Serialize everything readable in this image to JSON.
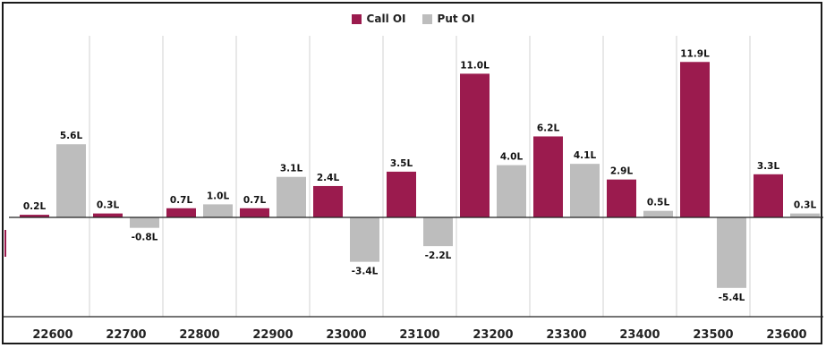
{
  "chart_data": {
    "type": "bar",
    "categories": [
      "22600",
      "22700",
      "22800",
      "22900",
      "23000",
      "23100",
      "23200",
      "23300",
      "23400",
      "23500",
      "23600"
    ],
    "series": [
      {
        "name": "Call OI",
        "values": [
          0.2,
          0.3,
          0.7,
          0.7,
          2.4,
          3.5,
          11.0,
          6.2,
          2.9,
          11.9,
          3.3
        ],
        "labels": [
          "0.2L",
          "0.3L",
          "0.7L",
          "0.7L",
          "2.4L",
          "3.5L",
          "11.0L",
          "6.2L",
          "2.9L",
          "11.9L",
          "3.3L"
        ],
        "color": "#9b1b4e"
      },
      {
        "name": "Put OI",
        "values": [
          5.6,
          -0.8,
          1.0,
          3.1,
          -3.4,
          -2.2,
          4.0,
          4.1,
          0.5,
          -5.4,
          0.3
        ],
        "labels": [
          "5.6L",
          "-0.8L",
          "1.0L",
          "3.1L",
          "-3.4L",
          "-2.2L",
          "4.0L",
          "4.1L",
          "0.5L",
          "-5.4L",
          "0.3L"
        ],
        "color": "#bdbdbd"
      }
    ],
    "ylim": [
      -7.2,
      12.5
    ],
    "grid": "vertical-category-separators",
    "legend_position": "top-center"
  }
}
